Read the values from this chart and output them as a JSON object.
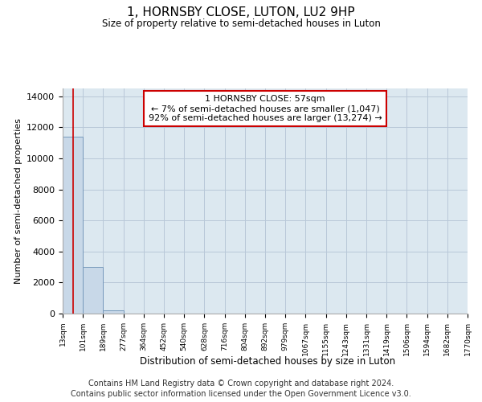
{
  "title": "1, HORNSBY CLOSE, LUTON, LU2 9HP",
  "subtitle": "Size of property relative to semi-detached houses in Luton",
  "xlabel": "Distribution of semi-detached houses by size in Luton",
  "ylabel": "Number of semi-detached properties",
  "annotation_title": "1 HORNSBY CLOSE: 57sqm",
  "annotation_line1": "← 7% of semi-detached houses are smaller (1,047)",
  "annotation_line2": "92% of semi-detached houses are larger (13,274) →",
  "property_size_sqm": 57,
  "bar_left_edges": [
    13,
    101,
    189,
    277,
    364,
    452,
    540,
    628,
    716,
    804,
    892,
    979,
    1067,
    1155,
    1243,
    1331,
    1419,
    1506,
    1594,
    1682
  ],
  "bar_widths": [
    88,
    88,
    88,
    88,
    88,
    88,
    88,
    88,
    88,
    88,
    88,
    88,
    88,
    88,
    88,
    88,
    88,
    88,
    88,
    88
  ],
  "bar_heights": [
    11400,
    3000,
    200,
    0,
    0,
    0,
    0,
    0,
    0,
    0,
    0,
    0,
    0,
    0,
    0,
    0,
    0,
    0,
    0,
    0
  ],
  "tick_labels": [
    "13sqm",
    "101sqm",
    "189sqm",
    "277sqm",
    "364sqm",
    "452sqm",
    "540sqm",
    "628sqm",
    "716sqm",
    "804sqm",
    "892sqm",
    "979sqm",
    "1067sqm",
    "1155sqm",
    "1243sqm",
    "1331sqm",
    "1419sqm",
    "1506sqm",
    "1594sqm",
    "1682sqm",
    "1770sqm"
  ],
  "bar_color": "#c8d8e8",
  "bar_edge_color": "#7799bb",
  "vline_color": "#cc0000",
  "vline_x": 57,
  "annotation_box_facecolor": "#ffffff",
  "annotation_box_edgecolor": "#cc0000",
  "axes_facecolor": "#dce8f0",
  "grid_color": "#b8c8d8",
  "background_color": "#ffffff",
  "ylim": [
    0,
    14500
  ],
  "yticks": [
    0,
    2000,
    4000,
    6000,
    8000,
    10000,
    12000,
    14000
  ],
  "footer_line1": "Contains HM Land Registry data © Crown copyright and database right 2024.",
  "footer_line2": "Contains public sector information licensed under the Open Government Licence v3.0."
}
